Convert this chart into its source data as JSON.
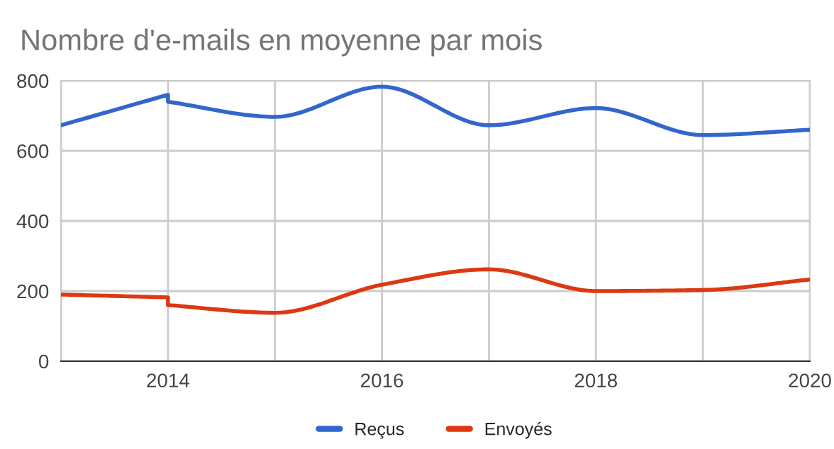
{
  "chart_data": {
    "type": "line",
    "title": "Nombre d'e-mails en moyenne par mois",
    "x": [
      2013,
      2014,
      2014,
      2015,
      2016,
      2017,
      2018,
      2019,
      2020
    ],
    "series": [
      {
        "name": "Reçus",
        "color": "#3366cc",
        "values": [
          673,
          760,
          740,
          697,
          783,
          673,
          722,
          645,
          660
        ]
      },
      {
        "name": "Envoyés",
        "color": "#dc3912",
        "values": [
          190,
          182,
          160,
          138,
          218,
          262,
          200,
          203,
          233
        ]
      }
    ],
    "xlim": [
      2013,
      2020
    ],
    "xticks": [
      {
        "value": 2013,
        "label": null
      },
      2014,
      {
        "value": 2015,
        "label": null
      },
      2016,
      {
        "value": 2017,
        "label": null
      },
      2018,
      {
        "value": 2019,
        "label": null
      },
      2020
    ],
    "ylim": [
      0,
      800
    ],
    "yticks": [
      0,
      200,
      400,
      600,
      800
    ],
    "grid": true,
    "legend": "bottom",
    "marker": "none",
    "line_style": "solid"
  }
}
